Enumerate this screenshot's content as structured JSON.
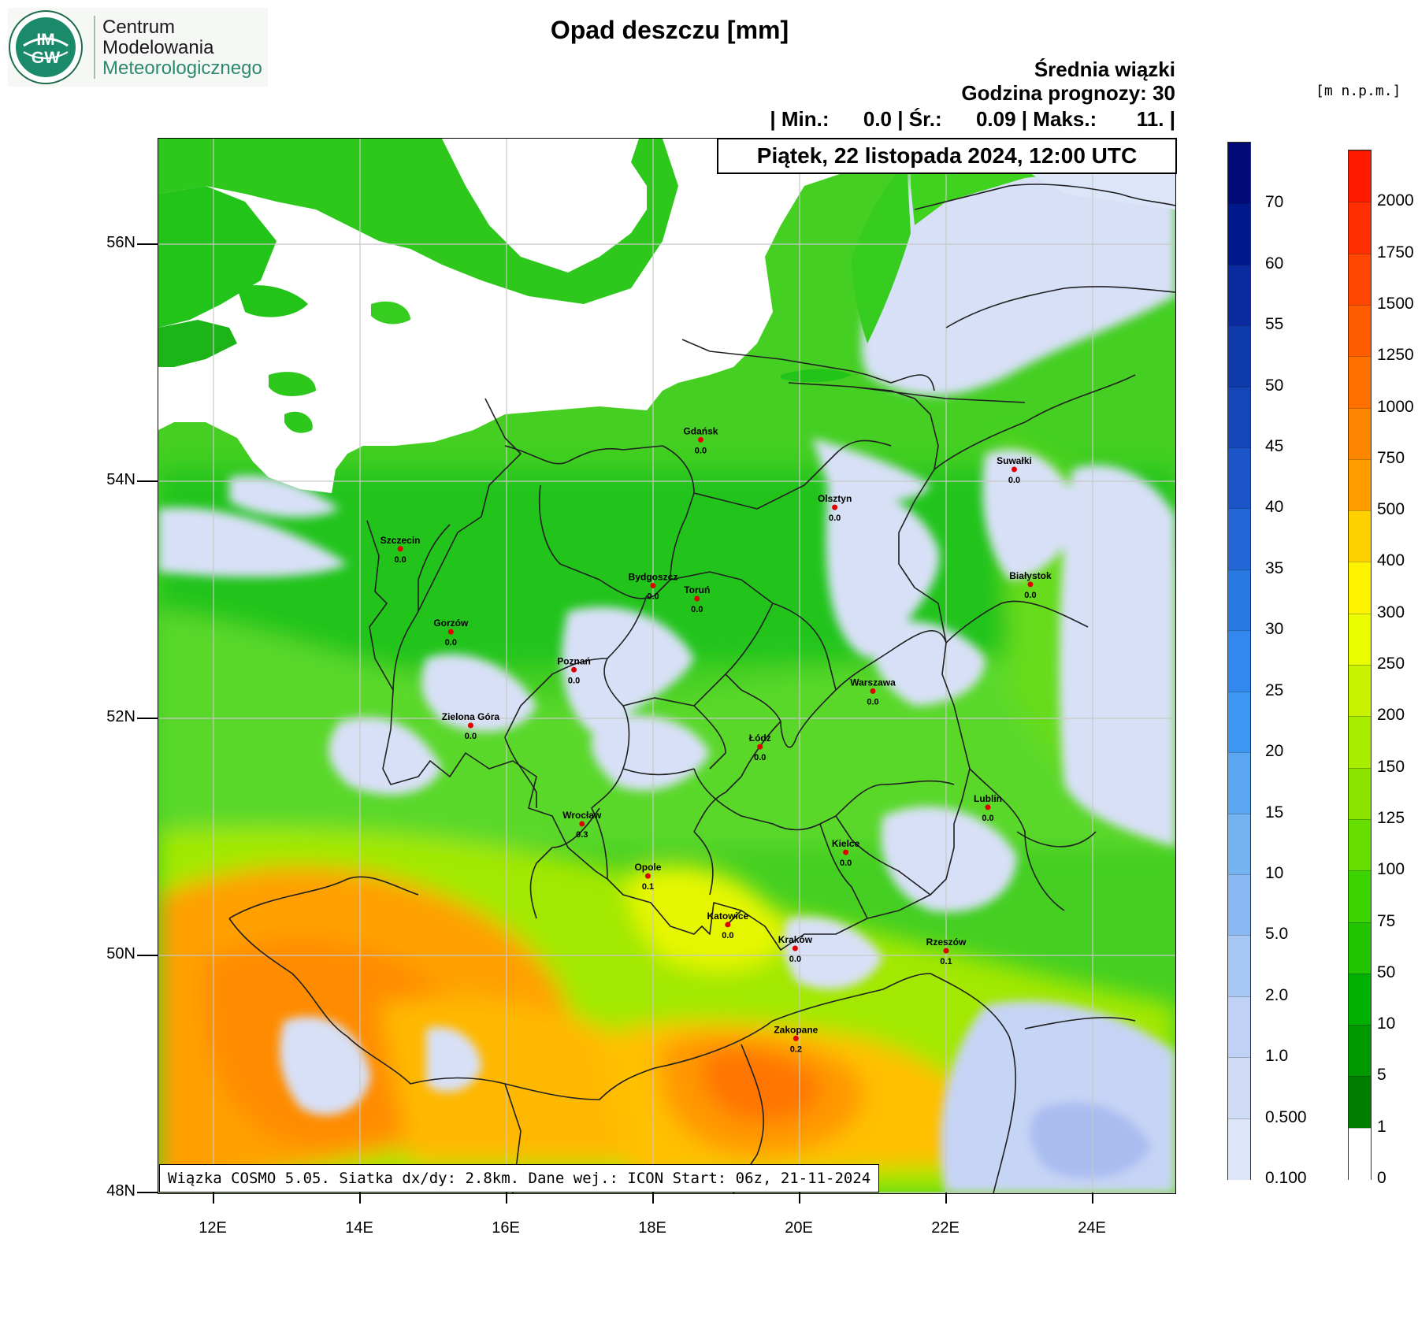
{
  "logo": {
    "badge_top": "IM",
    "badge_bottom": "GW",
    "line1": "Centrum",
    "line2": "Modelowania",
    "line3": "Meteorologicznego"
  },
  "title": "Opad deszczu [mm]",
  "header": {
    "ensemble": "Średnia wiązki",
    "forecast_hour": "Godzina prognozy: 30",
    "stats": "| Min.:      0.0 | Śr.:      0.09 | Maks.:       11. |",
    "date": "Piątek, 22 listopada 2024, 12:00 UTC"
  },
  "footer": "Wiązka COSMO 5.05. Siatka dx/dy: 2.8km. Dane wej.: ICON Start: 06z, 21-11-2024",
  "unit_label": "[m n.p.m.]",
  "axes": {
    "lat_labels": [
      "56N",
      "54N",
      "52N",
      "50N",
      "48N"
    ],
    "lon_labels": [
      "12E",
      "14E",
      "16E",
      "18E",
      "20E",
      "22E",
      "24E"
    ]
  },
  "cities": [
    {
      "name": "Gdańsk",
      "value": "0.0",
      "lon": 18.65,
      "lat": 54.35
    },
    {
      "name": "Suwałki",
      "value": "0.0",
      "lon": 22.93,
      "lat": 54.1
    },
    {
      "name": "Olsztyn",
      "value": "0.0",
      "lon": 20.48,
      "lat": 53.78
    },
    {
      "name": "Szczecin",
      "value": "0.0",
      "lon": 14.55,
      "lat": 53.43
    },
    {
      "name": "Białystok",
      "value": "0.0",
      "lon": 23.15,
      "lat": 53.13
    },
    {
      "name": "Bydgoszcz",
      "value": "0.0",
      "lon": 18.0,
      "lat": 53.12
    },
    {
      "name": "Toruń",
      "value": "0.0",
      "lon": 18.6,
      "lat": 53.01
    },
    {
      "name": "Gorzów",
      "value": "0.0",
      "lon": 15.24,
      "lat": 52.73
    },
    {
      "name": "Poznań",
      "value": "0.0",
      "lon": 16.92,
      "lat": 52.41
    },
    {
      "name": "Warszawa",
      "value": "0.0",
      "lon": 21.0,
      "lat": 52.23
    },
    {
      "name": "Zielona Góra",
      "value": "0.0",
      "lon": 15.51,
      "lat": 51.94
    },
    {
      "name": "Łódź",
      "value": "0.0",
      "lon": 19.46,
      "lat": 51.76
    },
    {
      "name": "Lublin",
      "value": "0.0",
      "lon": 22.57,
      "lat": 51.25
    },
    {
      "name": "Wrocław",
      "value": "0.3",
      "lon": 17.03,
      "lat": 51.11
    },
    {
      "name": "Kielce",
      "value": "0.0",
      "lon": 20.63,
      "lat": 50.87
    },
    {
      "name": "Opole",
      "value": "0.1",
      "lon": 17.93,
      "lat": 50.67
    },
    {
      "name": "Katowice",
      "value": "0.0",
      "lon": 19.02,
      "lat": 50.26
    },
    {
      "name": "Kraków",
      "value": "0.0",
      "lon": 19.94,
      "lat": 50.06
    },
    {
      "name": "Rzeszów",
      "value": "0.1",
      "lon": 22.0,
      "lat": 50.04
    },
    {
      "name": "Zakopane",
      "value": "0.2",
      "lon": 19.95,
      "lat": 49.3
    }
  ],
  "precip_scale": {
    "labels": [
      "70",
      "60",
      "55",
      "50",
      "45",
      "40",
      "35",
      "30",
      "25",
      "20",
      "15",
      "10",
      "5.0",
      "2.0",
      "1.0",
      "0.500",
      "0.100"
    ],
    "colors": [
      "#000a78",
      "#00198c",
      "#0a2ba0",
      "#0f3aac",
      "#1546b8",
      "#1c55c8",
      "#2366d6",
      "#2a78e2",
      "#3288ee",
      "#3c98f2",
      "#5aa6f0",
      "#74b2f0",
      "#8ab8f2",
      "#a6c6f4",
      "#bfd2f5",
      "#d0dcf6",
      "#dde5f8"
    ]
  },
  "terrain_scale": {
    "labels": [
      "2000",
      "1750",
      "1500",
      "1250",
      "1000",
      "750",
      "500",
      "400",
      "300",
      "250",
      "200",
      "150",
      "125",
      "100",
      "75",
      "50",
      "10",
      "5",
      "1",
      "0"
    ],
    "colors": [
      "#ff1a00",
      "#ff2e00",
      "#ff4600",
      "#ff5c00",
      "#ff7000",
      "#ff8600",
      "#ff9c00",
      "#ffd000",
      "#fff200",
      "#ecfc00",
      "#c8f200",
      "#a8ec00",
      "#8ae400",
      "#66de00",
      "#3cd400",
      "#22c400",
      "#00b000",
      "#009800",
      "#007e00",
      "#ffffff"
    ]
  }
}
